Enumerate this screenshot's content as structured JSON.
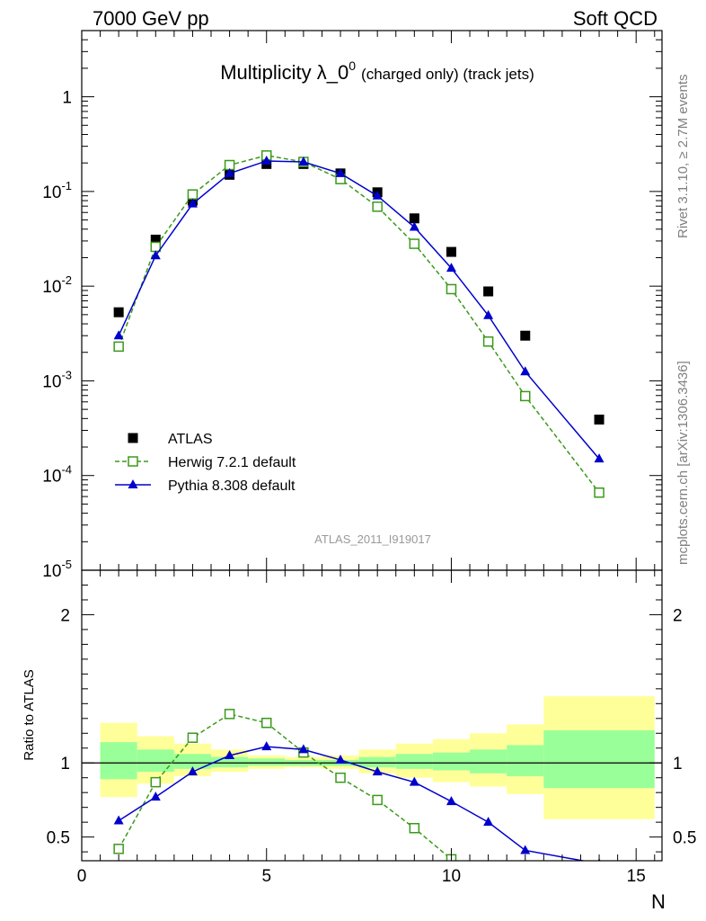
{
  "header": {
    "left": "7000 GeV pp",
    "right": "Soft QCD"
  },
  "title": {
    "main": "Multiplicity λ_0",
    "superscript": "0",
    "detail": "(charged only) (track jets)"
  },
  "side_labels": {
    "rivet": "Rivet 3.1.10, ≥ 2.7M events",
    "mcplots": "mcplots.cern.ch [arXiv:1306.3436]"
  },
  "analysis_id": "ATLAS_2011_I919017",
  "colors": {
    "atlas": "#000000",
    "herwig": "#3a9a1a",
    "pythia": "#0000cc",
    "band_inner": "#99ff99",
    "band_outer": "#ffff99"
  },
  "chart_data": [
    {
      "type": "scatter",
      "panel": "main",
      "y_scale": "log",
      "xlim": [
        0,
        15.7
      ],
      "ylim": [
        1e-05,
        5
      ],
      "y_tick_labels": [
        "10^-5",
        "10^-4",
        "10^-3",
        "10^-2",
        "10^-1",
        "1"
      ],
      "legend": {
        "placement": "lower-left",
        "entries": [
          "ATLAS",
          "Herwig 7.2.1 default",
          "Pythia 8.308 default"
        ]
      },
      "series": [
        {
          "name": "ATLAS",
          "style": "markers",
          "x": [
            1,
            2,
            3,
            4,
            5,
            6,
            7,
            8,
            9,
            10,
            11,
            12,
            14
          ],
          "y": [
            0.0053,
            0.031,
            0.08,
            0.15,
            0.195,
            0.195,
            0.155,
            0.098,
            0.052,
            0.023,
            0.0088,
            0.003,
            0.00039
          ]
        },
        {
          "name": "Herwig 7.2.1 default",
          "style": "dashed-open-square",
          "x": [
            1,
            2,
            3,
            4,
            5,
            6,
            7,
            8,
            9,
            10,
            11,
            12,
            14
          ],
          "y": [
            0.0023,
            0.026,
            0.093,
            0.19,
            0.24,
            0.205,
            0.135,
            0.069,
            0.028,
            0.0093,
            0.0026,
            0.00069,
            6.6e-05
          ]
        },
        {
          "name": "Pythia 8.308 default",
          "style": "solid-triangle",
          "x": [
            1,
            2,
            3,
            4,
            5,
            6,
            7,
            8,
            9,
            10,
            11,
            12,
            14
          ],
          "y": [
            0.003,
            0.021,
            0.074,
            0.155,
            0.21,
            0.205,
            0.155,
            0.09,
            0.042,
            0.0155,
            0.0049,
            0.00125,
            0.00015
          ]
        }
      ]
    },
    {
      "type": "line",
      "panel": "ratio",
      "ylabel": "Ratio to ATLAS",
      "xlabel": "N",
      "xlim": [
        0,
        15.7
      ],
      "ylim": [
        0.34,
        2.3
      ],
      "x_tick_labels": [
        "0",
        "5",
        "10",
        "15"
      ],
      "y_tick_labels": [
        "0.5",
        "1",
        "2"
      ],
      "reference": 1,
      "bands": [
        {
          "x0": 0.5,
          "x1": 1.5,
          "inner": [
            0.89,
            1.14
          ],
          "outer": [
            0.77,
            1.27
          ]
        },
        {
          "x0": 1.5,
          "x1": 2.5,
          "inner": [
            0.94,
            1.09
          ],
          "outer": [
            0.86,
            1.18
          ]
        },
        {
          "x0": 2.5,
          "x1": 3.5,
          "inner": [
            0.96,
            1.06
          ],
          "outer": [
            0.91,
            1.13
          ]
        },
        {
          "x0": 3.5,
          "x1": 4.5,
          "inner": [
            0.97,
            1.04
          ],
          "outer": [
            0.94,
            1.09
          ]
        },
        {
          "x0": 4.5,
          "x1": 5.5,
          "inner": [
            0.98,
            1.03
          ],
          "outer": [
            0.96,
            1.05
          ]
        },
        {
          "x0": 5.5,
          "x1": 6.5,
          "inner": [
            0.98,
            1.02
          ],
          "outer": [
            0.97,
            1.04
          ]
        },
        {
          "x0": 6.5,
          "x1": 7.5,
          "inner": [
            0.98,
            1.02
          ],
          "outer": [
            0.96,
            1.05
          ]
        },
        {
          "x0": 7.5,
          "x1": 8.5,
          "inner": [
            0.97,
            1.04
          ],
          "outer": [
            0.93,
            1.09
          ]
        },
        {
          "x0": 8.5,
          "x1": 9.5,
          "inner": [
            0.96,
            1.06
          ],
          "outer": [
            0.9,
            1.13
          ]
        },
        {
          "x0": 9.5,
          "x1": 10.5,
          "inner": [
            0.95,
            1.07
          ],
          "outer": [
            0.87,
            1.16
          ]
        },
        {
          "x0": 10.5,
          "x1": 11.5,
          "inner": [
            0.93,
            1.09
          ],
          "outer": [
            0.84,
            1.2
          ]
        },
        {
          "x0": 11.5,
          "x1": 12.5,
          "inner": [
            0.91,
            1.12
          ],
          "outer": [
            0.79,
            1.26
          ]
        },
        {
          "x0": 12.5,
          "x1": 15.5,
          "inner": [
            0.83,
            1.22
          ],
          "outer": [
            0.62,
            1.45
          ]
        }
      ],
      "series": [
        {
          "name": "Herwig 7.2.1 default",
          "x": [
            1,
            2,
            3,
            4,
            5,
            6,
            7,
            8,
            9,
            10
          ],
          "y": [
            0.42,
            0.87,
            1.17,
            1.33,
            1.27,
            1.07,
            0.9,
            0.75,
            0.56,
            0.35
          ]
        },
        {
          "name": "Pythia 8.308 default",
          "x": [
            1,
            2,
            3,
            4,
            5,
            6,
            7,
            8,
            9,
            10,
            11,
            12,
            14
          ],
          "y": [
            0.61,
            0.77,
            0.94,
            1.05,
            1.11,
            1.09,
            1.02,
            0.94,
            0.87,
            0.74,
            0.6,
            0.41,
            0.32
          ]
        }
      ]
    }
  ]
}
